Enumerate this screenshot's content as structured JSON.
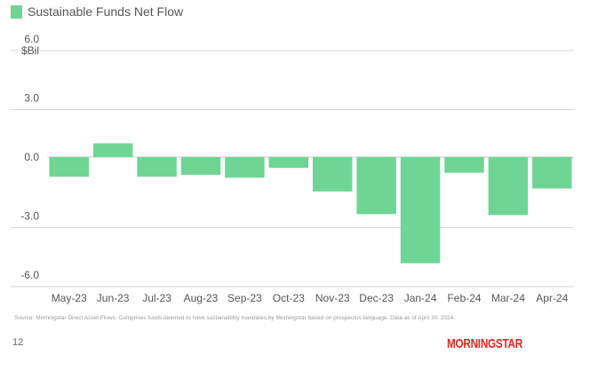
{
  "chart_data": {
    "type": "bar",
    "title": "Sustainable Funds Net Flow",
    "unit_label": "$Bil",
    "categories": [
      "May-23",
      "Jun-23",
      "Jul-23",
      "Aug-23",
      "Sep-23",
      "Oct-23",
      "Nov-23",
      "Dec-23",
      "Jan-24",
      "Feb-24",
      "Mar-24",
      "Apr-24"
    ],
    "series": [
      {
        "name": "Sustainable Funds Net Flow",
        "values": [
          -1.0,
          0.7,
          -1.0,
          -0.9,
          -1.05,
          -0.55,
          -1.75,
          -2.9,
          -5.4,
          -0.8,
          -2.95,
          -1.6
        ]
      }
    ],
    "ylim": [
      -6.0,
      6.0
    ],
    "yticks": [
      6.0,
      3.0,
      0.0,
      -3.0,
      -6.0
    ],
    "ytick_labels": [
      "6.0",
      "3.0",
      "0.0",
      "-3.0",
      "-6.0"
    ],
    "grid": true,
    "legend": "top-left",
    "bar_color": "#6fd594"
  },
  "footer": {
    "source": "Source: Morningstar Direct Asset Flows. Comprises funds deemed to have sustainability mandates by Morningstar based on prospectus language. Data as of April 30, 2024.",
    "page_number": "12",
    "logo_text": "MORNINGSTAR",
    "logo_color": "#e3261c"
  }
}
